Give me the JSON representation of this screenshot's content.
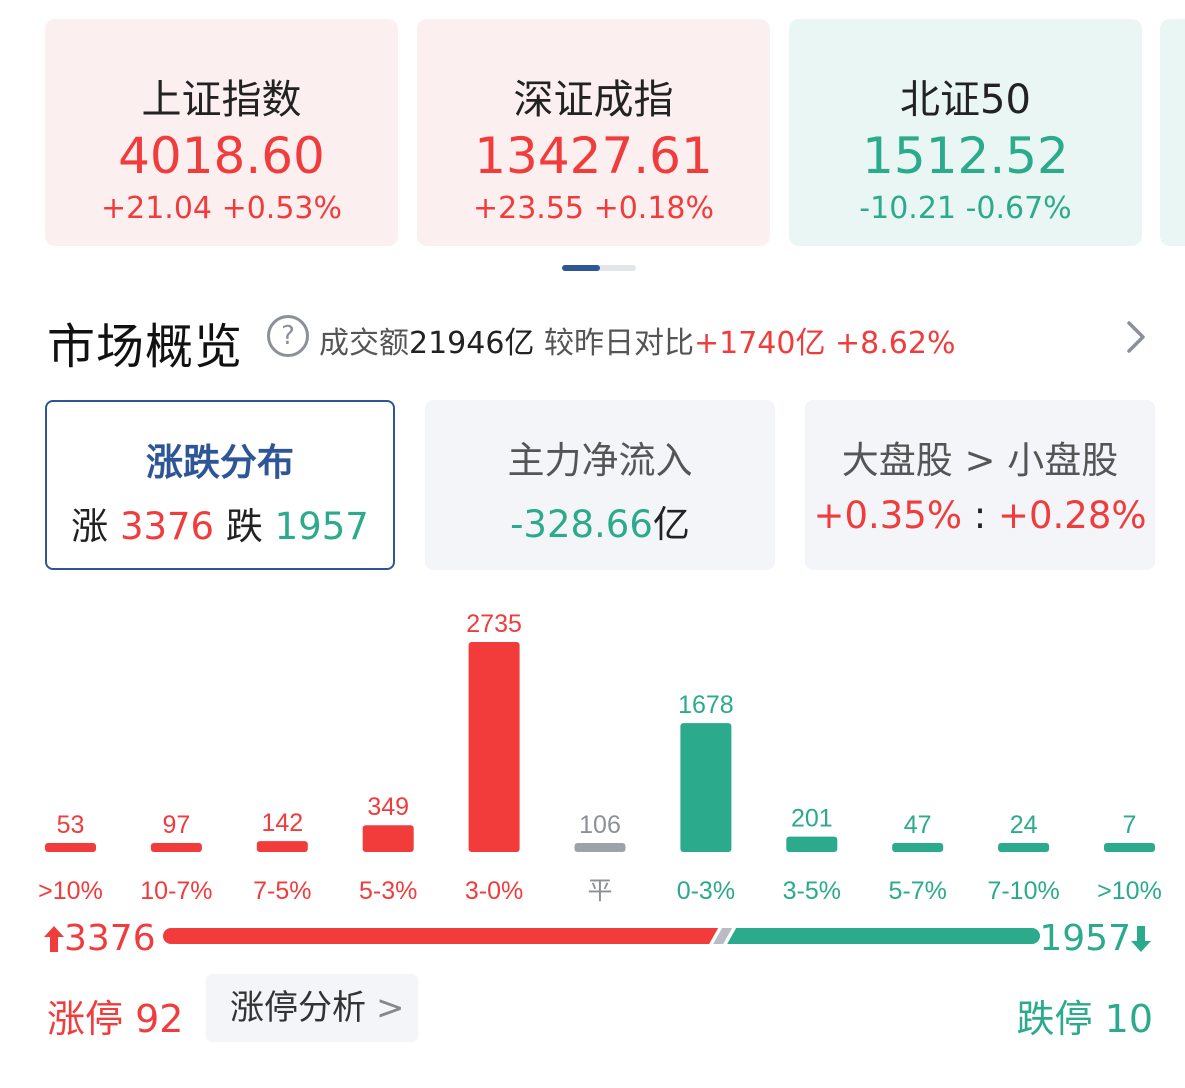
{
  "indices": [
    {
      "name": "上证指数",
      "value": "4018.60",
      "change": "+21.04",
      "pct": "+0.53%",
      "trend": "up"
    },
    {
      "name": "深证成指",
      "value": "13427.61",
      "change": "+23.55",
      "pct": "+0.18%",
      "trend": "up"
    },
    {
      "name": "北证50",
      "value": "1512.52",
      "change": "-10.21",
      "pct": "-0.67%",
      "trend": "down"
    }
  ],
  "overview": {
    "title": "市场概览",
    "turnover_label": "成交额",
    "turnover_value": "21946亿",
    "compare_label": "较昨日对比",
    "compare_value": "+1740亿",
    "compare_pct": "+8.62%"
  },
  "tabs": {
    "distribution": {
      "title": "涨跌分布",
      "up_label": "涨",
      "up_value": "3376",
      "down_label": "跌",
      "down_value": "1957"
    },
    "main_flow": {
      "title": "主力净流入",
      "value": "-328.66",
      "unit": "亿"
    },
    "caps": {
      "title": "大盘股 > 小盘股",
      "large": "+0.35%",
      "sep": ":",
      "small": "+0.28%"
    }
  },
  "chart_data": {
    "type": "bar",
    "categories": [
      ">10%",
      "10-7%",
      "7-5%",
      "5-3%",
      "3-0%",
      "平",
      "0-3%",
      "3-5%",
      "5-7%",
      "7-10%",
      ">10%"
    ],
    "values": [
      53,
      97,
      142,
      349,
      2735,
      106,
      1678,
      201,
      47,
      24,
      7
    ],
    "bar_colors": [
      "#f23c3c",
      "#f23c3c",
      "#f23c3c",
      "#f23c3c",
      "#f23c3c",
      "#9ea3ab",
      "#2baa8c",
      "#2baa8c",
      "#2baa8c",
      "#2baa8c",
      "#2baa8c"
    ]
  },
  "totals": {
    "up": "3376",
    "down": "1957",
    "up_ratio": 0.633
  },
  "limits": {
    "up_label": "涨停",
    "up_count": "92",
    "analysis_label": "涨停分析",
    "down_label": "跌停",
    "down_count": "10"
  },
  "colors": {
    "up": "#f03c3c",
    "down": "#2baa8c",
    "flat": "#9ea3ab",
    "accent": "#2e5696"
  }
}
